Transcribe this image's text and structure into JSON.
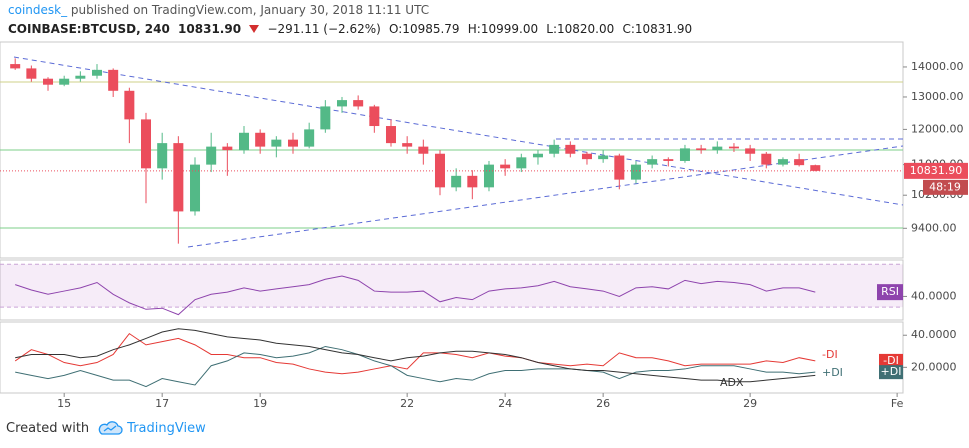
{
  "header": {
    "author": "coindesk_",
    "published": "published on TradingView.com, January 30, 2018 11:11 UTC",
    "symbol": "COINBASE:BTCUSD, 240",
    "price": "10831.90",
    "change": "−291.11 (−2.62%)",
    "open": "O:10985.79",
    "high": "H:10999.00",
    "low": "L:10820.00",
    "close": "C:10831.90"
  },
  "footer": {
    "created": "Created with",
    "brand": "TradingView"
  },
  "chart_data": [
    {
      "type": "candlestick",
      "log_scale": true,
      "up_color": "#53b987",
      "down_color": "#eb4d5c",
      "x": [
        14.0,
        14.33,
        14.67,
        15.0,
        15.33,
        15.67,
        16.0,
        16.33,
        16.67,
        17.0,
        17.33,
        17.67,
        18.0,
        18.33,
        18.67,
        19.0,
        19.33,
        19.67,
        20.0,
        20.33,
        20.67,
        21.0,
        21.33,
        21.67,
        22.0,
        22.33,
        22.67,
        23.0,
        23.33,
        23.67,
        24.0,
        24.33,
        24.67,
        25.0,
        25.33,
        25.67,
        26.0,
        26.33,
        26.67,
        27.0,
        27.33,
        27.67,
        28.0,
        28.33,
        28.67,
        29.0,
        29.33,
        29.67,
        30.0,
        30.33
      ],
      "open": [
        14100,
        13950,
        13600,
        13400,
        13600,
        13700,
        13900,
        13200,
        12300,
        10900,
        11600,
        9800,
        11000,
        11500,
        11400,
        11900,
        11500,
        11700,
        11500,
        12000,
        12700,
        12900,
        12700,
        12100,
        11600,
        11500,
        11300,
        10400,
        10700,
        10400,
        11000,
        10900,
        11200,
        11300,
        11550,
        11300,
        11150,
        11250,
        10600,
        11000,
        11150,
        11100,
        11450,
        11400,
        11500,
        11450,
        11300,
        11000,
        11150,
        10985.79
      ],
      "high": [
        14300,
        14050,
        13650,
        13700,
        13850,
        14100,
        13950,
        13300,
        12500,
        11900,
        11800,
        11200,
        11900,
        11600,
        12100,
        12000,
        11800,
        11900,
        12200,
        12900,
        13000,
        13050,
        12750,
        12300,
        11800,
        11700,
        11400,
        10900,
        10850,
        11100,
        11150,
        11300,
        11400,
        11700,
        11650,
        11350,
        11400,
        11300,
        11100,
        11250,
        11200,
        11550,
        11550,
        11650,
        11600,
        11550,
        11350,
        11200,
        11300,
        10999.0
      ],
      "low": [
        13900,
        13500,
        13200,
        13350,
        13500,
        13600,
        13000,
        11600,
        10000,
        10600,
        9050,
        9700,
        10800,
        10700,
        11300,
        11300,
        11200,
        11300,
        11450,
        11900,
        12500,
        12600,
        11900,
        11500,
        11300,
        11000,
        10200,
        10300,
        10100,
        10300,
        10700,
        10800,
        11000,
        11200,
        11200,
        11000,
        11050,
        10350,
        10500,
        10900,
        10950,
        11050,
        11300,
        11300,
        11350,
        11100,
        10900,
        10950,
        10950,
        10820.0
      ],
      "close": [
        13950,
        13600,
        13400,
        13600,
        13700,
        13900,
        13200,
        12300,
        10900,
        11600,
        9800,
        11000,
        11500,
        11400,
        11900,
        11500,
        11700,
        11500,
        12000,
        12700,
        12900,
        12700,
        12100,
        11600,
        11500,
        11300,
        10400,
        10700,
        10400,
        11000,
        10900,
        11200,
        11300,
        11550,
        11300,
        11150,
        11250,
        10600,
        11000,
        11150,
        11100,
        11450,
        11400,
        11500,
        11450,
        11300,
        11000,
        11150,
        10985.79,
        10831.9
      ],
      "last_label": "10831.90",
      "countdown": "48:19",
      "xlim": [
        13.69,
        32.12
      ],
      "xticks": [
        15,
        17,
        19,
        22,
        24,
        26,
        29,
        {
          "value": 32,
          "label": "Fe"
        }
      ],
      "ylim": [
        8800,
        14780
      ],
      "yticks": [
        {
          "value": 14000,
          "label": "14000.00"
        },
        {
          "value": 13000,
          "label": "13000.00"
        },
        {
          "value": 12000,
          "label": "12000.00"
        },
        {
          "value": 11000,
          "label": "11000.00"
        },
        {
          "value": 10200,
          "label": "10200.00"
        },
        {
          "value": 9400,
          "label": "9400.00"
        }
      ]
    },
    {
      "type": "line",
      "ylim": [
        18,
        74
      ],
      "yticks": [
        {
          "value": 40,
          "label": "40.0000"
        }
      ],
      "band": [
        30,
        70
      ],
      "series": [
        {
          "name": "RSI",
          "color": "#8e44ad",
          "values": [
            51,
            46,
            42,
            45,
            48,
            53,
            42,
            34,
            28,
            29,
            23,
            37,
            42,
            44,
            48,
            45,
            47,
            49,
            51,
            56,
            59,
            55,
            45,
            44,
            44,
            45,
            35,
            39,
            37,
            45,
            47,
            48,
            50,
            54,
            49,
            47,
            45,
            40,
            48,
            49,
            47,
            55,
            52,
            54,
            53,
            51,
            45,
            48,
            48,
            44
          ]
        }
      ]
    },
    {
      "type": "line",
      "ylim": [
        4,
        47
      ],
      "yticks": [
        {
          "value": 40,
          "label": "40.0000"
        },
        {
          "value": 20,
          "label": "20.0000"
        }
      ],
      "series": [
        {
          "name": "-DI",
          "color": "#e53935",
          "values": [
            24,
            31,
            28,
            23,
            21,
            23,
            28,
            41,
            34,
            36,
            38,
            34,
            28,
            28,
            26,
            26,
            23,
            22,
            19,
            17,
            16,
            17,
            19,
            21,
            19,
            29,
            29,
            28,
            26,
            29,
            27,
            26,
            23,
            22,
            21,
            22,
            21,
            29,
            26,
            26,
            24,
            21,
            22,
            22,
            22,
            22,
            24,
            23,
            26,
            24
          ]
        },
        {
          "name": "+DI",
          "color": "#3f6f74",
          "values": [
            17,
            15,
            13,
            15,
            18,
            15,
            12,
            12,
            8,
            13,
            11,
            9,
            21,
            24,
            29,
            28,
            26,
            27,
            29,
            33,
            31,
            28,
            24,
            21,
            15,
            13,
            11,
            13,
            12,
            16,
            18,
            18,
            19,
            19,
            19,
            18,
            17,
            13,
            17,
            18,
            18,
            19,
            21,
            21,
            21,
            19,
            17,
            17,
            16,
            17
          ]
        },
        {
          "name": "ADX",
          "color": "#333333",
          "values": [
            26,
            28,
            28,
            28,
            26,
            27,
            31,
            34,
            38,
            42,
            44,
            43,
            41,
            39,
            38,
            37,
            35,
            34,
            33,
            31,
            29,
            28,
            26,
            24,
            26,
            27,
            29,
            30,
            30,
            29,
            28,
            26,
            23,
            21,
            19,
            18,
            18,
            17,
            16,
            15,
            14,
            13,
            12,
            12,
            11,
            11,
            12,
            13,
            14,
            15
          ]
        }
      ]
    }
  ]
}
